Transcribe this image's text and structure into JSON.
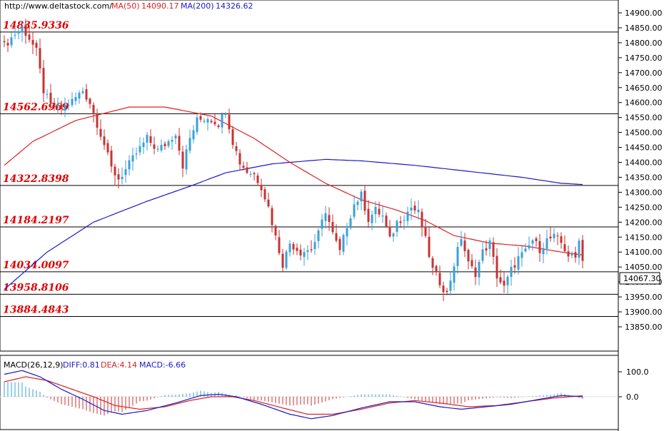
{
  "header": {
    "site": "http://www.deltastock.com/",
    "ma50_label": "MA(50)",
    "ma50_value": "14090.17",
    "ma200_label": "MA(200)",
    "ma200_value": "14326.62"
  },
  "colors": {
    "up": "#3aa0d8",
    "down": "#c83232",
    "ma50": "#e02020",
    "ma200": "#1a1acc",
    "level_text": "#e00000"
  },
  "chart_data": [
    {
      "type": "candlestick",
      "title": "",
      "xlabel": "",
      "ylabel": "",
      "ylim": [
        13820,
        14925
      ],
      "y_ticks": [
        "14900.00",
        "14850.00",
        "14800.00",
        "14750.00",
        "14700.00",
        "14650.00",
        "14600.00",
        "14550.00",
        "14500.00",
        "14450.00",
        "14400.00",
        "14350.00",
        "14300.00",
        "14250.00",
        "14200.00",
        "14150.00",
        "14100.00",
        "14050.00",
        "14000.00",
        "13950.00",
        "13900.00",
        "13850.00"
      ],
      "last_price": "14067.30",
      "levels": [
        {
          "label": "14835.9336",
          "value": 14835.93
        },
        {
          "label": "14562.6969",
          "value": 14562.7
        },
        {
          "label": "14322.8398",
          "value": 14322.84
        },
        {
          "label": "14184.2197",
          "value": 14184.22
        },
        {
          "label": "14034.0097",
          "value": 14034.01
        },
        {
          "label": "13958.8106",
          "value": 13958.81
        },
        {
          "label": "13884.4843",
          "value": 13884.48
        }
      ],
      "anchors": [
        [
          0,
          14790
        ],
        [
          3,
          14830
        ],
        [
          5,
          14850
        ],
        [
          7,
          14815
        ],
        [
          9,
          14770
        ],
        [
          11,
          14640
        ],
        [
          13,
          14590
        ],
        [
          16,
          14580
        ],
        [
          19,
          14605
        ],
        [
          22,
          14640
        ],
        [
          24,
          14600
        ],
        [
          26,
          14530
        ],
        [
          28,
          14460
        ],
        [
          30,
          14380
        ],
        [
          32,
          14345
        ],
        [
          34,
          14375
        ],
        [
          37,
          14430
        ],
        [
          40,
          14480
        ],
        [
          43,
          14440
        ],
        [
          46,
          14470
        ],
        [
          48,
          14500
        ],
        [
          50,
          14390
        ],
        [
          52,
          14480
        ],
        [
          54,
          14540
        ],
        [
          57,
          14550
        ],
        [
          60,
          14530
        ],
        [
          62,
          14575
        ],
        [
          64,
          14470
        ],
        [
          66,
          14400
        ],
        [
          68,
          14370
        ],
        [
          70,
          14360
        ],
        [
          72,
          14320
        ],
        [
          74,
          14250
        ],
        [
          76,
          14150
        ],
        [
          78,
          14060
        ],
        [
          80,
          14130
        ],
        [
          83,
          14100
        ],
        [
          86,
          14110
        ],
        [
          88,
          14160
        ],
        [
          90,
          14240
        ],
        [
          92,
          14160
        ],
        [
          94,
          14100
        ],
        [
          96,
          14190
        ],
        [
          98,
          14260
        ],
        [
          100,
          14290
        ],
        [
          102,
          14210
        ],
        [
          104,
          14240
        ],
        [
          106,
          14220
        ],
        [
          108,
          14140
        ],
        [
          110,
          14200
        ],
        [
          112,
          14220
        ],
        [
          114,
          14250
        ],
        [
          116,
          14230
        ],
        [
          118,
          14140
        ],
        [
          120,
          14040
        ],
        [
          122,
          14000
        ],
        [
          124,
          13960
        ],
        [
          126,
          14060
        ],
        [
          128,
          14150
        ],
        [
          130,
          14060
        ],
        [
          132,
          14030
        ],
        [
          134,
          14100
        ],
        [
          136,
          14130
        ],
        [
          138,
          14020
        ],
        [
          140,
          13980
        ],
        [
          142,
          14040
        ],
        [
          144,
          14080
        ],
        [
          146,
          14100
        ],
        [
          148,
          14140
        ],
        [
          150,
          14110
        ],
        [
          152,
          14140
        ],
        [
          154,
          14150
        ],
        [
          156,
          14130
        ],
        [
          158,
          14090
        ],
        [
          160,
          14080
        ],
        [
          161,
          14150
        ],
        [
          162,
          14070
        ]
      ],
      "ma50_path": [
        [
          0,
          14390
        ],
        [
          8,
          14470
        ],
        [
          20,
          14540
        ],
        [
          35,
          14585
        ],
        [
          45,
          14585
        ],
        [
          58,
          14555
        ],
        [
          70,
          14480
        ],
        [
          80,
          14400
        ],
        [
          90,
          14330
        ],
        [
          100,
          14275
        ],
        [
          110,
          14240
        ],
        [
          118,
          14205
        ],
        [
          126,
          14155
        ],
        [
          136,
          14130
        ],
        [
          146,
          14120
        ],
        [
          156,
          14100
        ],
        [
          162,
          14090
        ]
      ],
      "ma200_path": [
        [
          0,
          13975
        ],
        [
          12,
          14100
        ],
        [
          25,
          14200
        ],
        [
          40,
          14270
        ],
        [
          52,
          14320
        ],
        [
          62,
          14365
        ],
        [
          75,
          14395
        ],
        [
          90,
          14410
        ],
        [
          100,
          14405
        ],
        [
          115,
          14390
        ],
        [
          130,
          14370
        ],
        [
          145,
          14350
        ],
        [
          156,
          14330
        ],
        [
          162,
          14326
        ]
      ]
    },
    {
      "type": "macd",
      "title": "",
      "params_label": "MACD(26,12,9)",
      "diff_label": "DIFF:0.81",
      "dea_label": "DEA:4.14",
      "macd_label": "MACD:-6.66",
      "ylim": [
        -80,
        135
      ],
      "y_ticks": [
        "100.0",
        "0.0"
      ],
      "diff_path": [
        [
          0,
          90
        ],
        [
          5,
          105
        ],
        [
          10,
          80
        ],
        [
          16,
          30
        ],
        [
          22,
          -10
        ],
        [
          28,
          -55
        ],
        [
          33,
          -70
        ],
        [
          40,
          -55
        ],
        [
          48,
          -25
        ],
        [
          55,
          5
        ],
        [
          60,
          10
        ],
        [
          65,
          0
        ],
        [
          72,
          -30
        ],
        [
          80,
          -70
        ],
        [
          86,
          -88
        ],
        [
          92,
          -75
        ],
        [
          100,
          -45
        ],
        [
          108,
          -20
        ],
        [
          115,
          -20
        ],
        [
          122,
          -40
        ],
        [
          128,
          -50
        ],
        [
          135,
          -40
        ],
        [
          142,
          -30
        ],
        [
          150,
          -10
        ],
        [
          156,
          5
        ],
        [
          162,
          0
        ]
      ],
      "dea_path": [
        [
          0,
          60
        ],
        [
          6,
          80
        ],
        [
          12,
          65
        ],
        [
          18,
          35
        ],
        [
          25,
          0
        ],
        [
          31,
          -35
        ],
        [
          38,
          -50
        ],
        [
          45,
          -40
        ],
        [
          52,
          -15
        ],
        [
          58,
          0
        ],
        [
          64,
          0
        ],
        [
          70,
          -15
        ],
        [
          78,
          -45
        ],
        [
          85,
          -70
        ],
        [
          92,
          -70
        ],
        [
          100,
          -50
        ],
        [
          108,
          -25
        ],
        [
          115,
          -15
        ],
        [
          122,
          -25
        ],
        [
          130,
          -40
        ],
        [
          138,
          -35
        ],
        [
          146,
          -20
        ],
        [
          154,
          -5
        ],
        [
          162,
          4
        ]
      ]
    }
  ]
}
